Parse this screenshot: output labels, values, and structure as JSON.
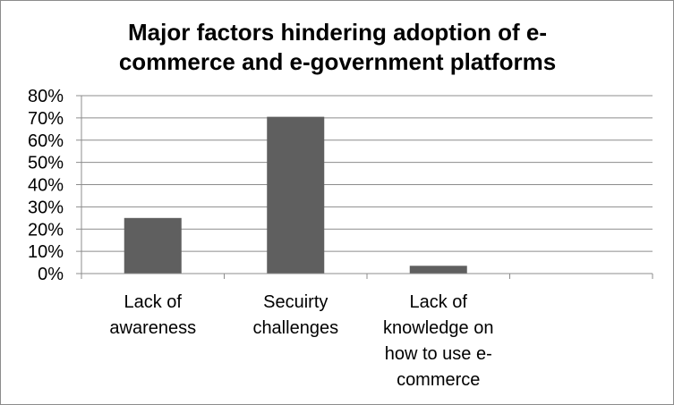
{
  "chart_data": {
    "type": "bar",
    "title_lines": [
      "Major factors hindering adoption of e-",
      "commerce and e-government platforms"
    ],
    "categories": [
      [
        "Lack of",
        "awareness"
      ],
      [
        "Secuirty",
        "challenges"
      ],
      [
        "Lack of",
        "knowledge on",
        "how to use e-",
        "commerce"
      ],
      []
    ],
    "values": [
      25,
      70.5,
      3.5,
      0
    ],
    "ylim": [
      0,
      80
    ],
    "yticks": [
      0,
      10,
      20,
      30,
      40,
      50,
      60,
      70,
      80
    ],
    "ytick_format": "percent",
    "grid": true,
    "legend": "none",
    "colors": {
      "bar": "#5f5f5f",
      "grid": "#8c8c8c",
      "axis": "#8c8c8c"
    }
  }
}
